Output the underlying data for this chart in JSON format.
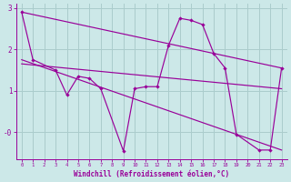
{
  "xlabel": "Windchill (Refroidissement éolien,°C)",
  "bg_color": "#cce8e8",
  "line_color": "#990099",
  "grid_color": "#aacccc",
  "xlim": [
    -0.5,
    23.5
  ],
  "ylim": [
    -0.65,
    3.1
  ],
  "yticks": [
    0,
    1,
    2,
    3
  ],
  "ytick_labels": [
    "-0",
    "1",
    "2",
    "3"
  ],
  "xticks": [
    0,
    1,
    2,
    3,
    4,
    5,
    6,
    7,
    8,
    9,
    10,
    11,
    12,
    13,
    14,
    15,
    16,
    17,
    18,
    19,
    20,
    21,
    22,
    23
  ],
  "curve1_x": [
    0,
    1,
    3,
    4,
    5,
    6,
    7,
    9,
    10,
    11,
    12,
    13,
    14,
    15,
    16,
    17,
    18,
    19,
    21,
    22,
    23
  ],
  "curve1_y": [
    2.9,
    1.75,
    1.5,
    0.9,
    1.35,
    1.3,
    1.05,
    -0.45,
    1.05,
    1.1,
    1.1,
    2.1,
    2.75,
    2.7,
    2.6,
    1.9,
    1.55,
    -0.05,
    -0.43,
    -0.43,
    1.55
  ],
  "trend1_x": [
    0,
    23
  ],
  "trend1_y": [
    2.9,
    1.55
  ],
  "trend2_x": [
    0,
    23
  ],
  "trend2_y": [
    1.75,
    -0.43
  ],
  "trend3_x": [
    0,
    23
  ],
  "trend3_y": [
    1.65,
    1.05
  ]
}
